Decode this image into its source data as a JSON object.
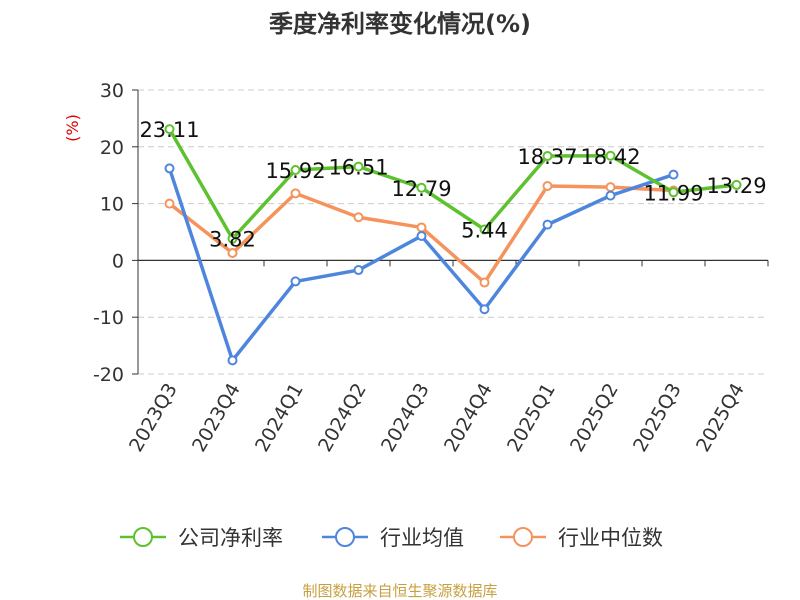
{
  "chart_data": {
    "type": "line",
    "title": "季度净利率变化情况(%)",
    "ylabel": "(%)",
    "categories": [
      "2023Q3",
      "2023Q4",
      "2024Q1",
      "2024Q2",
      "2024Q3",
      "2024Q4",
      "2025Q1",
      "2025Q2",
      "2025Q3",
      "2025Q4"
    ],
    "ylim": [
      -20,
      30
    ],
    "yticks": [
      30,
      20,
      10,
      0,
      -10,
      -20
    ],
    "grid": "horizontal-dashed",
    "legend_position": "bottom",
    "series": [
      {
        "name": "公司净利率",
        "color": "#5ec230",
        "values": [
          23.11,
          3.82,
          15.92,
          16.51,
          12.79,
          5.44,
          18.37,
          18.42,
          11.99,
          13.29
        ],
        "labels": [
          "23.11",
          "3.82",
          "15.92",
          "16.51",
          "12.79",
          "5.44",
          "18.37",
          "18.42",
          "11.99",
          "13.29"
        ]
      },
      {
        "name": "行业均值",
        "color": "#4f86dd",
        "values": [
          16.2,
          -17.6,
          -3.7,
          -1.7,
          4.3,
          -8.6,
          6.3,
          11.4,
          15.1,
          null
        ]
      },
      {
        "name": "行业中位数",
        "color": "#f5935d",
        "values": [
          10.0,
          1.3,
          11.8,
          7.6,
          5.8,
          -3.9,
          13.1,
          12.9,
          12.3,
          null
        ]
      }
    ]
  },
  "source_note": "制图数据来自恒生聚源数据库"
}
